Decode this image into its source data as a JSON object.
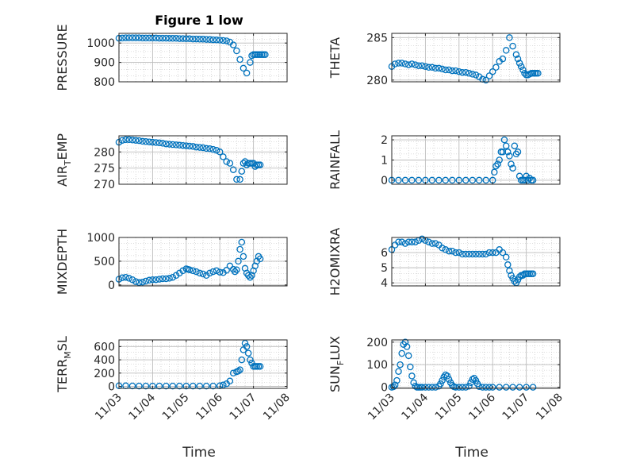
{
  "figure": {
    "title": "Figure 1 low"
  },
  "colors": {
    "marker": "#0072BD",
    "axis": "#262626",
    "grid": "#bdbdbd"
  },
  "chart_data": [
    {
      "type": "scatter",
      "id": "pressure",
      "ylabel_parts": [
        "PRESSURE"
      ],
      "xlim": [
        0,
        5
      ],
      "ylim": [
        800,
        1050
      ],
      "yticks": [
        800,
        900,
        1000
      ],
      "x": [
        0,
        0.1,
        0.2,
        0.3,
        0.4,
        0.5,
        0.6,
        0.7,
        0.8,
        0.9,
        1.0,
        1.1,
        1.2,
        1.3,
        1.4,
        1.5,
        1.6,
        1.7,
        1.8,
        1.9,
        2.0,
        2.1,
        2.2,
        2.3,
        2.4,
        2.5,
        2.6,
        2.7,
        2.8,
        2.9,
        3.0,
        3.1,
        3.2,
        3.3,
        3.4,
        3.5,
        3.6,
        3.7,
        3.8,
        3.9,
        3.95,
        4.0,
        4.05,
        4.1,
        4.15,
        4.2,
        4.25,
        4.3,
        4.35
      ],
      "y": [
        1025,
        1026,
        1027,
        1027,
        1027,
        1027,
        1027,
        1026,
        1026,
        1026,
        1026,
        1026,
        1025,
        1025,
        1025,
        1024,
        1024,
        1024,
        1023,
        1023,
        1022,
        1022,
        1021,
        1021,
        1020,
        1020,
        1019,
        1018,
        1017,
        1016,
        1015,
        1013,
        1011,
        1005,
        990,
        960,
        915,
        870,
        845,
        900,
        935,
        940,
        940,
        940,
        940,
        940,
        940,
        940,
        940
      ]
    },
    {
      "type": "scatter",
      "id": "theta",
      "ylabel_parts": [
        "THETA"
      ],
      "xlim": [
        0,
        5
      ],
      "ylim": [
        279.8,
        285.5
      ],
      "yticks": [
        280,
        285
      ],
      "x": [
        0,
        0.1,
        0.2,
        0.3,
        0.4,
        0.5,
        0.6,
        0.7,
        0.8,
        0.9,
        1.0,
        1.1,
        1.2,
        1.3,
        1.4,
        1.5,
        1.6,
        1.7,
        1.8,
        1.9,
        2.0,
        2.1,
        2.2,
        2.3,
        2.4,
        2.5,
        2.6,
        2.7,
        2.8,
        2.9,
        3.0,
        3.1,
        3.2,
        3.3,
        3.4,
        3.5,
        3.6,
        3.7,
        3.75,
        3.8,
        3.85,
        3.9,
        3.95,
        4.0,
        4.05,
        4.1,
        4.15,
        4.2,
        4.25,
        4.3,
        4.35
      ],
      "y": [
        281.6,
        281.9,
        282.0,
        282.0,
        281.9,
        281.8,
        281.9,
        281.8,
        281.7,
        281.7,
        281.6,
        281.5,
        281.5,
        281.4,
        281.4,
        281.3,
        281.2,
        281.2,
        281.1,
        281.1,
        281.0,
        280.9,
        280.9,
        280.8,
        280.7,
        280.6,
        280.4,
        280.1,
        280.0,
        280.5,
        281.0,
        281.5,
        282.2,
        282.5,
        283.5,
        285.0,
        284.0,
        283.0,
        282.5,
        282.0,
        281.6,
        281.2,
        280.8,
        280.6,
        280.6,
        280.7,
        280.8,
        280.8,
        280.8,
        280.8,
        280.8
      ]
    },
    {
      "type": "scatter",
      "id": "air_temp",
      "ylabel_parts": [
        "AIR",
        "T",
        "EMP"
      ],
      "xlim": [
        0,
        5
      ],
      "ylim": [
        270,
        285
      ],
      "yticks": [
        270,
        275,
        280
      ],
      "x": [
        0,
        0.1,
        0.2,
        0.3,
        0.4,
        0.5,
        0.6,
        0.7,
        0.8,
        0.9,
        1.0,
        1.1,
        1.2,
        1.3,
        1.4,
        1.5,
        1.6,
        1.7,
        1.8,
        1.9,
        2.0,
        2.1,
        2.2,
        2.3,
        2.4,
        2.5,
        2.6,
        2.7,
        2.8,
        2.9,
        3.0,
        3.1,
        3.2,
        3.3,
        3.4,
        3.5,
        3.6,
        3.65,
        3.7,
        3.75,
        3.8,
        3.85,
        3.9,
        3.95,
        4.0,
        4.05,
        4.1,
        4.15,
        4.2
      ],
      "y": [
        283.0,
        283.6,
        283.8,
        283.8,
        283.7,
        283.6,
        283.5,
        283.3,
        283.2,
        283.1,
        283.0,
        282.9,
        282.8,
        282.7,
        282.5,
        282.4,
        282.3,
        282.2,
        282.1,
        282.0,
        281.9,
        281.8,
        281.7,
        281.5,
        281.4,
        281.3,
        281.1,
        281.0,
        280.8,
        280.5,
        280.0,
        278.5,
        277.0,
        276.5,
        274.5,
        271.5,
        271.5,
        274.0,
        276.5,
        277.0,
        276.0,
        276.5,
        276.5,
        276.5,
        276.5,
        275.5,
        276.0,
        276.0,
        276.0
      ]
    },
    {
      "type": "scatter",
      "id": "rainfall",
      "ylabel_parts": [
        "RAINFALL"
      ],
      "xlim": [
        0,
        5
      ],
      "ylim": [
        -0.2,
        2.2
      ],
      "yticks": [
        0,
        1,
        2
      ],
      "x": [
        0,
        0.2,
        0.4,
        0.6,
        0.8,
        1.0,
        1.2,
        1.4,
        1.6,
        1.8,
        2.0,
        2.2,
        2.4,
        2.6,
        2.8,
        3.0,
        3.05,
        3.1,
        3.15,
        3.2,
        3.25,
        3.3,
        3.35,
        3.4,
        3.45,
        3.5,
        3.55,
        3.6,
        3.65,
        3.7,
        3.75,
        3.8,
        3.85,
        3.9,
        3.95,
        4.0,
        4.05,
        4.1,
        4.15,
        4.2
      ],
      "y": [
        0,
        0,
        0,
        0,
        0,
        0,
        0,
        0,
        0,
        0,
        0,
        0,
        0,
        0,
        0,
        0,
        0.4,
        0.7,
        0.8,
        1.0,
        1.4,
        1.4,
        2.0,
        1.7,
        1.4,
        1.2,
        0.8,
        0.6,
        1.7,
        1.3,
        1.4,
        0.2,
        0.0,
        0.0,
        0.0,
        0.2,
        0.0,
        0.1,
        0.0,
        0.0
      ]
    },
    {
      "type": "scatter",
      "id": "mixdepth",
      "ylabel_parts": [
        "MIXDEPTH"
      ],
      "xlim": [
        0,
        5
      ],
      "ylim": [
        -20,
        1000
      ],
      "yticks": [
        0,
        500,
        1000
      ],
      "x": [
        0,
        0.1,
        0.2,
        0.3,
        0.4,
        0.5,
        0.6,
        0.7,
        0.8,
        0.9,
        1.0,
        1.1,
        1.2,
        1.3,
        1.4,
        1.5,
        1.6,
        1.7,
        1.8,
        1.9,
        2.0,
        2.05,
        2.1,
        2.2,
        2.3,
        2.4,
        2.5,
        2.6,
        2.7,
        2.8,
        2.9,
        3.0,
        3.1,
        3.2,
        3.3,
        3.4,
        3.45,
        3.5,
        3.55,
        3.6,
        3.65,
        3.7,
        3.75,
        3.8,
        3.85,
        3.9,
        3.95,
        4.0,
        4.05,
        4.1,
        4.15,
        4.2
      ],
      "y": [
        120,
        150,
        160,
        140,
        110,
        70,
        50,
        60,
        80,
        100,
        110,
        110,
        120,
        130,
        130,
        140,
        160,
        200,
        250,
        300,
        340,
        330,
        320,
        300,
        280,
        250,
        230,
        200,
        250,
        280,
        300,
        270,
        260,
        310,
        400,
        330,
        280,
        320,
        500,
        750,
        900,
        600,
        350,
        250,
        200,
        160,
        200,
        300,
        400,
        500,
        600,
        550
      ]
    },
    {
      "type": "scatter",
      "id": "h2omixra",
      "ylabel_parts": [
        "H2OMIXRA"
      ],
      "xlim": [
        0,
        5
      ],
      "ylim": [
        3.8,
        7.0
      ],
      "yticks": [
        4,
        5,
        6
      ],
      "x": [
        0,
        0.1,
        0.2,
        0.3,
        0.4,
        0.5,
        0.6,
        0.7,
        0.8,
        0.9,
        1.0,
        1.1,
        1.2,
        1.3,
        1.4,
        1.5,
        1.6,
        1.7,
        1.8,
        1.9,
        2.0,
        2.1,
        2.2,
        2.3,
        2.4,
        2.5,
        2.6,
        2.7,
        2.8,
        2.9,
        3.0,
        3.1,
        3.2,
        3.3,
        3.4,
        3.45,
        3.5,
        3.55,
        3.6,
        3.65,
        3.7,
        3.75,
        3.8,
        3.85,
        3.9,
        3.95,
        4.0,
        4.05,
        4.1,
        4.15,
        4.2
      ],
      "y": [
        6.2,
        6.5,
        6.7,
        6.7,
        6.6,
        6.7,
        6.7,
        6.7,
        6.8,
        6.9,
        6.8,
        6.7,
        6.6,
        6.6,
        6.5,
        6.3,
        6.2,
        6.1,
        6.1,
        6.0,
        6.0,
        5.9,
        5.9,
        5.9,
        5.9,
        5.9,
        5.9,
        5.9,
        5.9,
        6.0,
        6.0,
        6.0,
        6.2,
        6.0,
        5.7,
        5.2,
        4.8,
        4.5,
        4.3,
        4.1,
        4.0,
        4.2,
        4.4,
        4.5,
        4.5,
        4.6,
        4.6,
        4.6,
        4.6,
        4.6,
        4.6
      ]
    },
    {
      "type": "scatter",
      "id": "terr_msl",
      "ylabel_parts": [
        "TERR",
        "M",
        "SL"
      ],
      "xlim": [
        0,
        5
      ],
      "ylim": [
        -30,
        700
      ],
      "yticks": [
        0,
        200,
        400,
        600
      ],
      "x": [
        0,
        0.2,
        0.4,
        0.6,
        0.8,
        1.0,
        1.2,
        1.4,
        1.6,
        1.8,
        2.0,
        2.2,
        2.4,
        2.6,
        2.8,
        3.0,
        3.1,
        3.2,
        3.3,
        3.4,
        3.5,
        3.55,
        3.6,
        3.65,
        3.7,
        3.75,
        3.8,
        3.85,
        3.9,
        3.95,
        4.0,
        4.05,
        4.1,
        4.15,
        4.2
      ],
      "y": [
        10,
        8,
        6,
        5,
        5,
        5,
        5,
        5,
        5,
        5,
        5,
        5,
        5,
        5,
        5,
        10,
        20,
        40,
        80,
        200,
        220,
        230,
        250,
        400,
        550,
        650,
        600,
        500,
        400,
        350,
        300,
        300,
        300,
        300,
        300
      ]
    },
    {
      "type": "scatter",
      "id": "sun_flux",
      "ylabel_parts": [
        "SUN",
        "F",
        "LUX"
      ],
      "xlim": [
        0,
        5
      ],
      "ylim": [
        -5,
        210
      ],
      "yticks": [
        0,
        100,
        200
      ],
      "x": [
        0,
        0.05,
        0.1,
        0.15,
        0.2,
        0.25,
        0.3,
        0.35,
        0.4,
        0.45,
        0.5,
        0.55,
        0.6,
        0.65,
        0.7,
        0.75,
        0.8,
        0.85,
        0.9,
        1.0,
        1.1,
        1.2,
        1.3,
        1.4,
        1.45,
        1.5,
        1.55,
        1.6,
        1.65,
        1.7,
        1.75,
        1.8,
        1.85,
        1.9,
        2.0,
        2.1,
        2.2,
        2.3,
        2.35,
        2.4,
        2.45,
        2.5,
        2.55,
        2.6,
        2.7,
        2.8,
        2.9,
        3.0,
        3.2,
        3.4,
        3.6,
        3.8,
        4.0,
        4.2
      ],
      "y": [
        0,
        2,
        10,
        30,
        70,
        100,
        150,
        190,
        200,
        180,
        140,
        90,
        50,
        20,
        5,
        0,
        0,
        0,
        0,
        0,
        0,
        0,
        0,
        5,
        15,
        30,
        45,
        55,
        50,
        35,
        20,
        8,
        2,
        0,
        0,
        0,
        0,
        5,
        20,
        35,
        40,
        30,
        15,
        3,
        0,
        0,
        0,
        0,
        0,
        0,
        0,
        0,
        0,
        0
      ]
    }
  ],
  "xaxis": {
    "ticks": [
      {
        "value": 0,
        "label": "11/03"
      },
      {
        "value": 1,
        "label": "11/04"
      },
      {
        "value": 2,
        "label": "11/05"
      },
      {
        "value": 3,
        "label": "11/06"
      },
      {
        "value": 4,
        "label": "11/07"
      },
      {
        "value": 5,
        "label": "11/08"
      }
    ],
    "label": "Time"
  }
}
